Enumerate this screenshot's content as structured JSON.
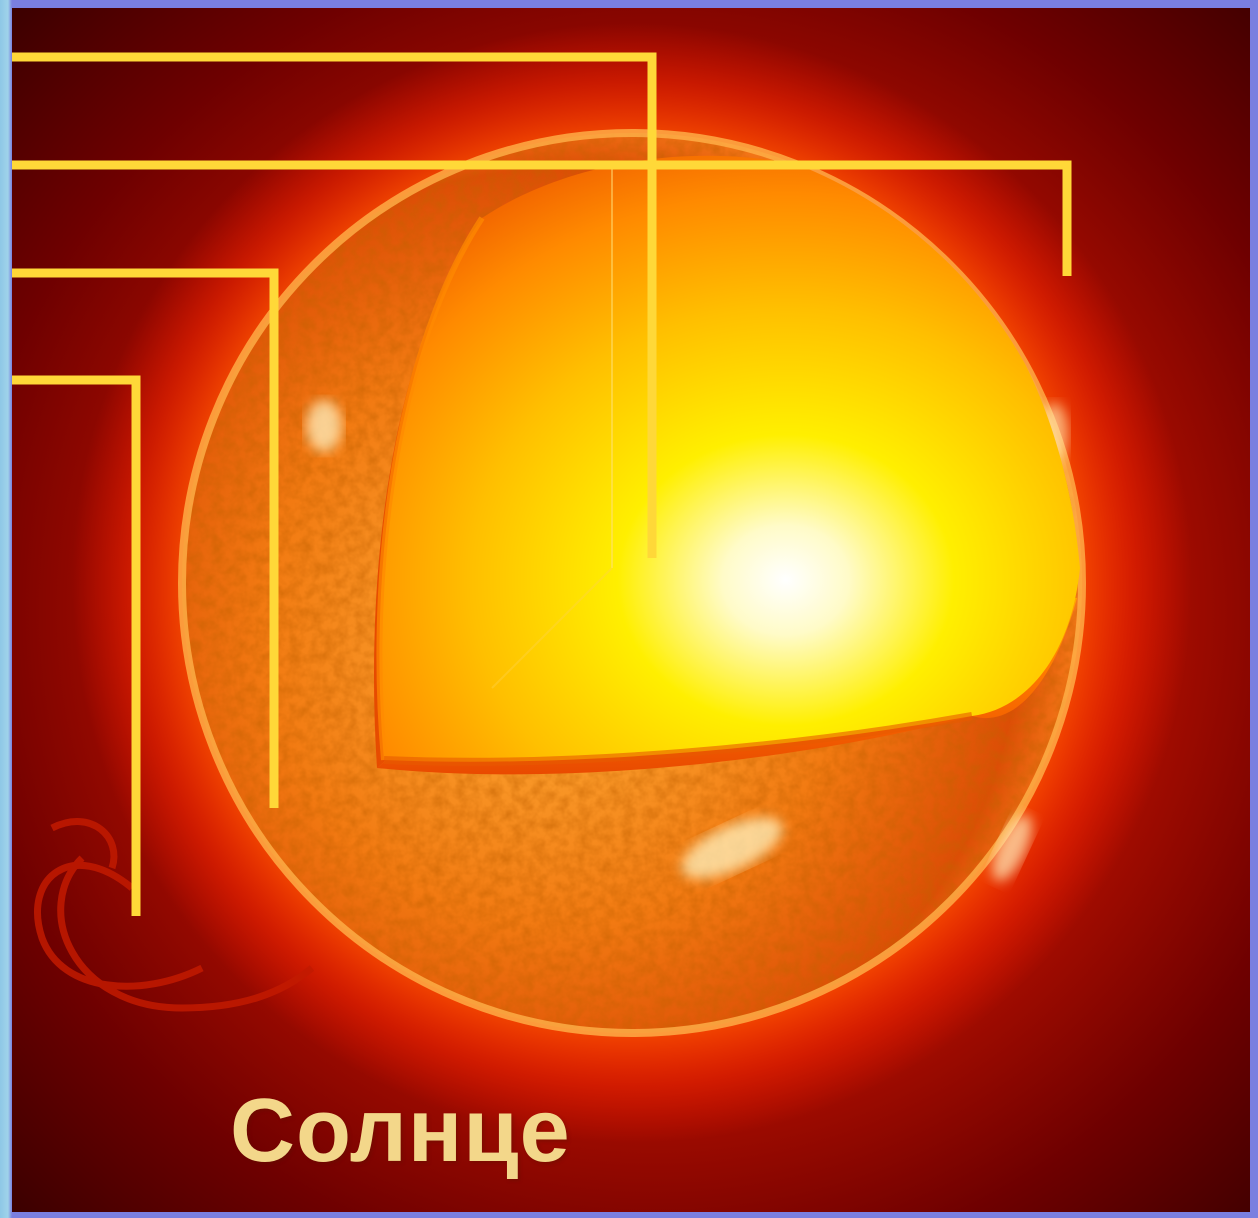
{
  "title": "Солнце",
  "colors": {
    "title": "#f3d78a",
    "pointer_lines": "#ffd838",
    "background_dark": "#3a0000",
    "background_glow": "#d11a00",
    "frame": "#7a7fe0"
  },
  "icons": {
    "sun_photo": "sun-cutaway-illustration"
  }
}
